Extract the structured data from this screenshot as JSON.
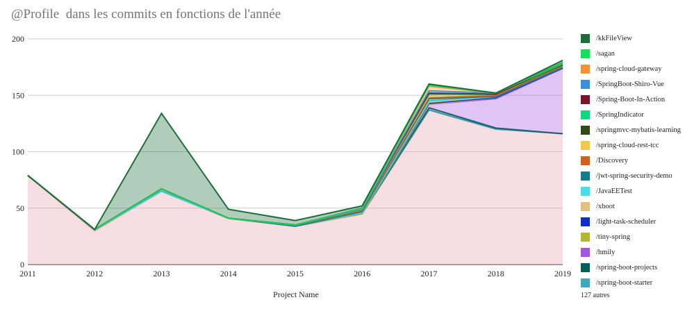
{
  "chart_data": {
    "type": "area",
    "title": "@Profile  dans les commits en fonctions de l'année",
    "xlabel": "Project Name",
    "ylabel": "",
    "ylim": [
      0,
      200
    ],
    "yticks": [
      0,
      50,
      100,
      150,
      200
    ],
    "categories": [
      "2011",
      "2012",
      "2013",
      "2014",
      "2015",
      "2016",
      "2017",
      "2018",
      "2019"
    ],
    "series": [
      {
        "name": "/kkFileView",
        "color": "#1e6e3c",
        "values": [
          0,
          0,
          67,
          8,
          4,
          2,
          1,
          0,
          2
        ]
      },
      {
        "name": "/sagan",
        "color": "#16e05a",
        "values": [
          0,
          0,
          0,
          0,
          0,
          0,
          1,
          0,
          0
        ]
      },
      {
        "name": "/spring-cloud-gateway",
        "color": "#f4923a",
        "values": [
          0,
          0,
          0,
          0,
          0,
          1,
          4,
          0,
          0
        ]
      },
      {
        "name": "/SpringBoot-Shiro-Vue",
        "color": "#3a8fd6",
        "values": [
          0,
          0,
          0,
          0,
          0,
          0,
          2,
          1,
          0
        ]
      },
      {
        "name": "/Spring-Boot-In-Action",
        "color": "#7c1230",
        "values": [
          0,
          0,
          0,
          0,
          0,
          0,
          1,
          0,
          1
        ]
      },
      {
        "name": "/SpringIndicator",
        "color": "#10d880",
        "values": [
          0,
          0,
          0,
          0,
          0,
          0,
          0,
          0,
          1
        ]
      },
      {
        "name": "/springmvc-mybatis-learning",
        "color": "#2f4a14",
        "values": [
          0,
          0,
          0,
          0,
          0,
          0,
          1,
          0,
          0
        ]
      },
      {
        "name": "/spring-cloud-rest-tcc",
        "color": "#f2c84a",
        "values": [
          0,
          0,
          0,
          0,
          0,
          1,
          2,
          1,
          1
        ]
      },
      {
        "name": "/Discovery",
        "color": "#d0641e",
        "values": [
          0,
          0,
          0,
          0,
          1,
          1,
          1,
          1,
          1
        ]
      },
      {
        "name": "/jwt-spring-security-demo",
        "color": "#147c8c",
        "values": [
          0,
          0,
          2,
          0,
          0,
          1,
          2,
          0,
          0
        ]
      },
      {
        "name": "/JavaEETest",
        "color": "#4adce8",
        "values": [
          0,
          0,
          0,
          0,
          0,
          0,
          1,
          0,
          0
        ]
      },
      {
        "name": "/xboot",
        "color": "#e2c07e",
        "values": [
          0,
          0,
          0,
          0,
          0,
          0,
          1,
          1,
          1
        ]
      },
      {
        "name": "/light-task-scheduler",
        "color": "#1030c8",
        "values": [
          0,
          0,
          0,
          0,
          0,
          1,
          1,
          0,
          0
        ]
      },
      {
        "name": "/tiny-spring",
        "color": "#b2b638",
        "values": [
          0,
          0,
          0,
          0,
          0,
          0,
          0,
          1,
          0
        ]
      },
      {
        "name": "/hmily",
        "color": "#a456e0",
        "values": [
          0,
          0,
          0,
          0,
          0,
          0,
          3,
          26,
          58
        ]
      },
      {
        "name": "/spring-boot-projects",
        "color": "#06605a",
        "values": [
          0,
          0,
          0,
          0,
          0,
          0,
          2,
          1,
          0
        ]
      },
      {
        "name": "/spring-boot-starter",
        "color": "#40a8b8",
        "values": [
          0,
          1,
          0,
          0,
          0,
          0,
          0,
          0,
          0
        ]
      }
    ],
    "others": {
      "label": "127 autres",
      "color": "#e8a0ae",
      "values": [
        79,
        30,
        65,
        41,
        34,
        45,
        137,
        120,
        116
      ]
    },
    "legend_position": "right",
    "legend_more_label": "127 autres"
  }
}
